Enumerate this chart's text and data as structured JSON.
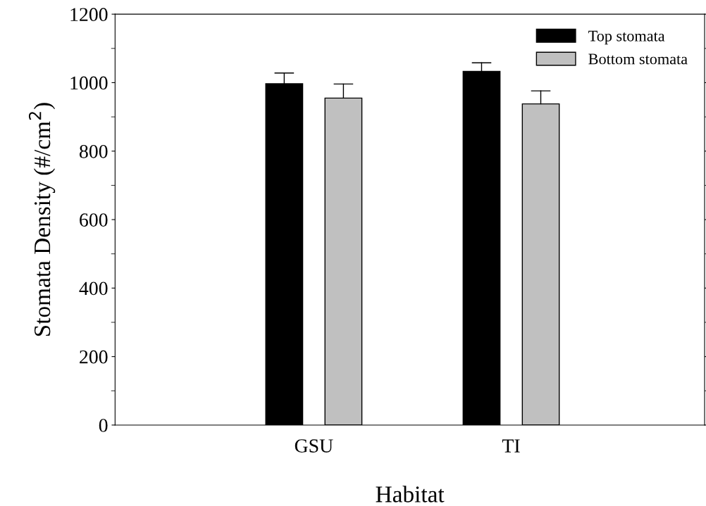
{
  "chart_data": {
    "type": "bar",
    "xlabel": "Habitat",
    "ylabel": "Stomata Density (#/cm$^{2}$)",
    "categories": [
      "GSU",
      "TI"
    ],
    "series": [
      {
        "name": "Top stomata",
        "color": "#000000",
        "values": [
          997,
          1033
        ],
        "errors": [
          [
            997,
            1028
          ],
          [
            1033,
            1058
          ]
        ]
      },
      {
        "name": "Bottom stomata",
        "color": "#c0c0c0",
        "values": [
          955,
          938
        ],
        "errors": [
          [
            955,
            996
          ],
          [
            938,
            976
          ]
        ]
      }
    ],
    "ylim": [
      0,
      1200
    ],
    "yticks": [
      0,
      200,
      400,
      600,
      800,
      1000,
      1200
    ],
    "grid": false,
    "legend": "top right"
  }
}
